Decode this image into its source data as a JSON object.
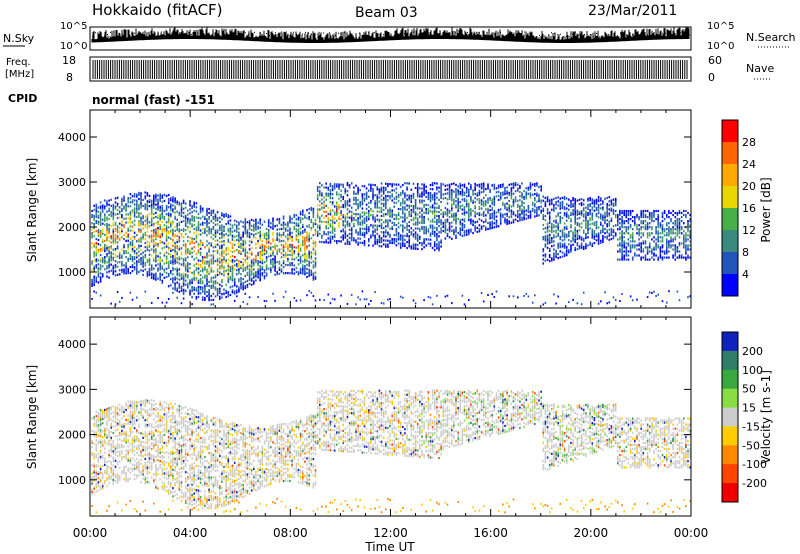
{
  "header": {
    "station": "Hokkaido (fitACF)",
    "beam": "Beam 03",
    "date": "23/Mar/2011"
  },
  "chart_data": [
    {
      "type": "line",
      "name_label": "N.Sky",
      "right_label": "N.Search",
      "y_ticks": [
        "10^5",
        "10^0"
      ],
      "right_ticks": [
        "10^5",
        "10^0"
      ]
    },
    {
      "type": "line",
      "left_label_line1": "Freq.",
      "left_label_line2": "[MHz]",
      "right_label": "Nave",
      "y_ticks": [
        18,
        8
      ],
      "right_ticks": [
        60,
        0
      ]
    },
    {
      "type": "text",
      "label": "CPID",
      "value": "normal (fast) -151"
    },
    {
      "type": "scatter",
      "parameter": "Power",
      "ylabel": "Slant Range [km]",
      "ylim": [
        200,
        4600
      ],
      "y_ticks": [
        1000,
        2000,
        3000,
        4000
      ],
      "colorbar": {
        "label": "Power [dB]",
        "ticks": [
          4,
          8,
          12,
          16,
          20,
          24,
          28
        ],
        "colors": [
          "#0000ff",
          "#2255bb",
          "#3b8a80",
          "#48b048",
          "#e8d800",
          "#ffaa00",
          "#ff6600",
          "#ff0000"
        ]
      }
    },
    {
      "type": "scatter",
      "parameter": "Velocity",
      "ylabel": "Slant Range [km]",
      "ylim": [
        200,
        4600
      ],
      "y_ticks": [
        1000,
        2000,
        3000,
        4000
      ],
      "colorbar": {
        "label": "Velocity [m s-1]",
        "ticks": [
          200,
          100,
          50,
          15,
          -15,
          -50,
          -100,
          -200
        ],
        "colors": [
          "#1122bb",
          "#2e7d6a",
          "#3aa840",
          "#88dd44",
          "#cccccc",
          "#ffcc00",
          "#ff8800",
          "#ff4400",
          "#ee0000"
        ]
      },
      "xlabel": "Time UT",
      "x_ticks": [
        "00:00",
        "04:00",
        "08:00",
        "12:00",
        "16:00",
        "20:00",
        "00:00"
      ]
    }
  ]
}
